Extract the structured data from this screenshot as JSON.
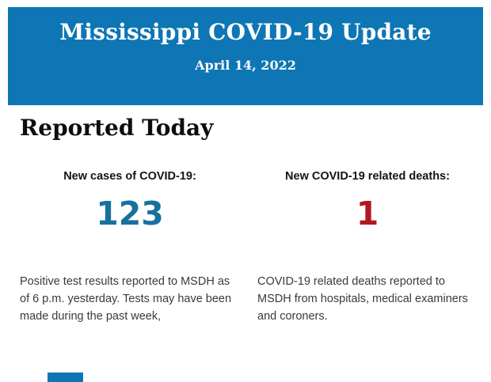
{
  "banner": {
    "title": "Mississippi COVID-19 Update",
    "date": "April 14, 2022",
    "bg_color": "#0e76b4",
    "text_color": "#ffffff"
  },
  "section": {
    "heading": "Reported Today"
  },
  "stats": {
    "cases": {
      "label": "New cases of COVID-19:",
      "value": "123",
      "value_color": "#17719f",
      "description": "Positive test results reported to MSDH as of 6 p.m. yesterday. Tests may have been made during the past week,"
    },
    "deaths": {
      "label": "New COVID-19 related deaths:",
      "value": "1",
      "value_color": "#b2181f",
      "description": "COVID-19 related deaths reported to MSDH from hospitals, medical examiners and coroners."
    }
  }
}
